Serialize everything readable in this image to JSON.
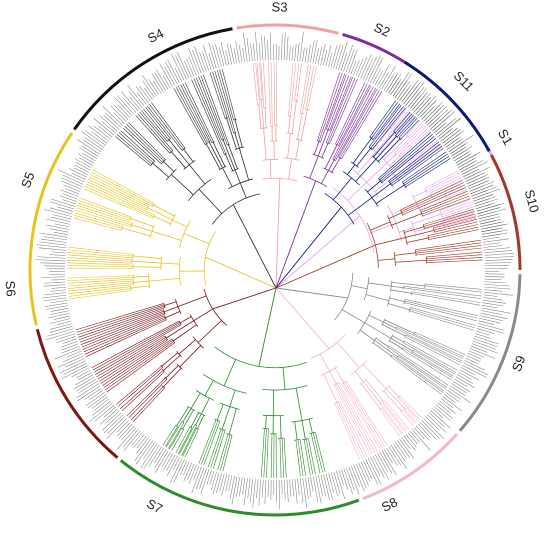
{
  "figure": {
    "subfamilies": [
      {
        "id": "S1",
        "label": "S1",
        "color": "#e6a8e6"
      },
      {
        "id": "S2",
        "label": "S2",
        "color": "#7a2e9e"
      },
      {
        "id": "S3",
        "label": "S3",
        "color": "#f2a0a0"
      },
      {
        "id": "S4",
        "label": "S4",
        "color": "#111111"
      },
      {
        "id": "S5",
        "label": "S5",
        "color": "#e8c21e"
      },
      {
        "id": "S6",
        "label": "S6",
        "color": "#7a1818"
      },
      {
        "id": "S7",
        "label": "S7",
        "color": "#2e8b2e"
      },
      {
        "id": "S8",
        "label": "S8",
        "color": "#f4b8c8"
      },
      {
        "id": "S9",
        "label": "S9",
        "color": "#8a8a8a"
      },
      {
        "id": "S10",
        "label": "S10",
        "color": "#a03a2a"
      },
      {
        "id": "S11",
        "label": "S11",
        "color": "#0a1a7a"
      }
    ]
  }
}
